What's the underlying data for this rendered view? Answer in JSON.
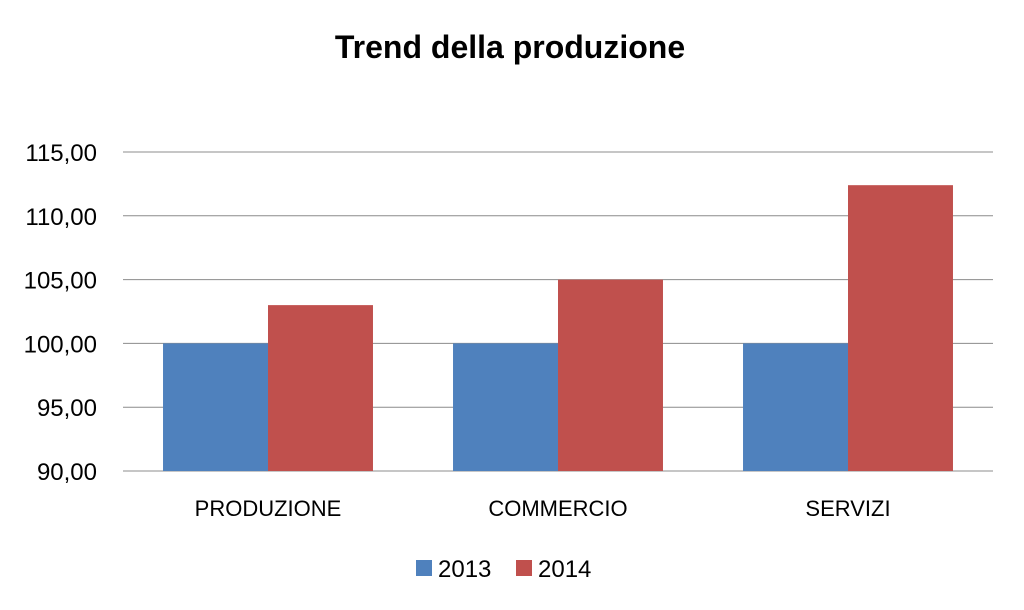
{
  "chart_data": {
    "type": "bar",
    "title": "Trend della produzione",
    "categories": [
      "PRODUZIONE",
      "COMMERCIO",
      "SERVIZI"
    ],
    "series": [
      {
        "name": "2013",
        "values": [
          100.0,
          100.0,
          100.0
        ],
        "color": "#4F81BD"
      },
      {
        "name": "2014",
        "values": [
          103.0,
          105.0,
          112.4
        ],
        "color": "#C0504D"
      }
    ],
    "ylim": [
      90,
      115
    ],
    "yticks": [
      90,
      95,
      100,
      105,
      110,
      115
    ],
    "ytick_labels": [
      "90,00",
      "95,00",
      "100,00",
      "105,00",
      "110,00",
      "115,00"
    ],
    "xlabel": "",
    "ylabel": "",
    "grid": true,
    "legend_position": "bottom"
  }
}
